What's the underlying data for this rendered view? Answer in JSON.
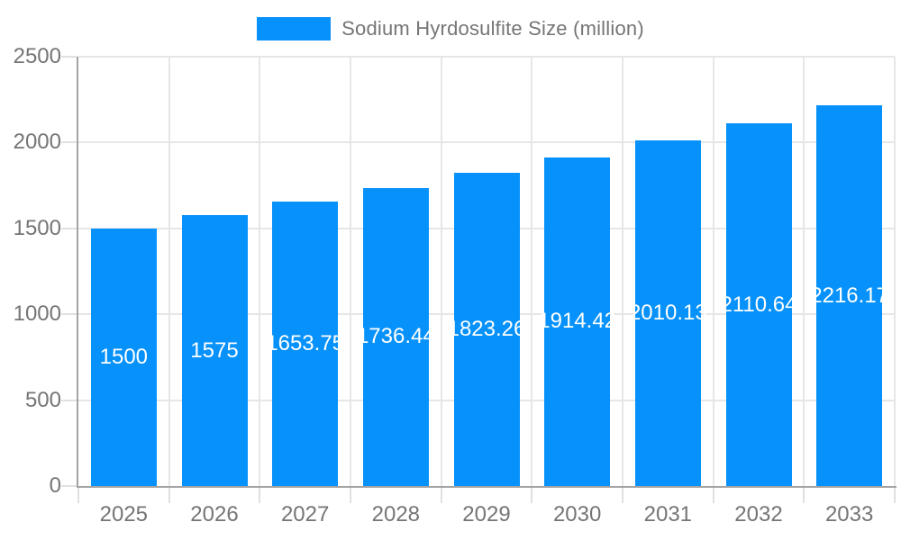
{
  "legend": {
    "label": "Sodium Hyrdosulfite Size (million)",
    "position": "top"
  },
  "chart_data": {
    "type": "bar",
    "title": "",
    "xlabel": "",
    "ylabel": "",
    "categories": [
      "2025",
      "2026",
      "2027",
      "2028",
      "2029",
      "2030",
      "2031",
      "2032",
      "2033"
    ],
    "series": [
      {
        "name": "Sodium Hyrdosulfite Size (million)",
        "values": [
          1500,
          1575,
          1653.75,
          1736.44,
          1823.26,
          1914.42,
          2010.13,
          2110.64,
          2216.17
        ]
      }
    ],
    "data_labels": [
      "1500",
      "1575",
      "1653.75",
      "1736.44",
      "1823.26",
      "1914.42",
      "2010.13",
      "2110.64",
      "2216.17"
    ],
    "ylim": [
      0,
      2500
    ],
    "ytick_labels": [
      "0",
      "500",
      "1000",
      "1500",
      "2000",
      "2500"
    ],
    "ytick_values": [
      0,
      500,
      1000,
      1500,
      2000,
      2500
    ],
    "grid": true,
    "legend_position": "top-center"
  },
  "colors": {
    "bar": "#0691fb",
    "axis_line": "#a3a3a3",
    "gridline": "#e6e6e6",
    "tick": "#e0e0e0",
    "axis_label_text": "#757575",
    "legend_text": "#757575",
    "data_label_text": "#ffffff",
    "background": "#ffffff"
  }
}
